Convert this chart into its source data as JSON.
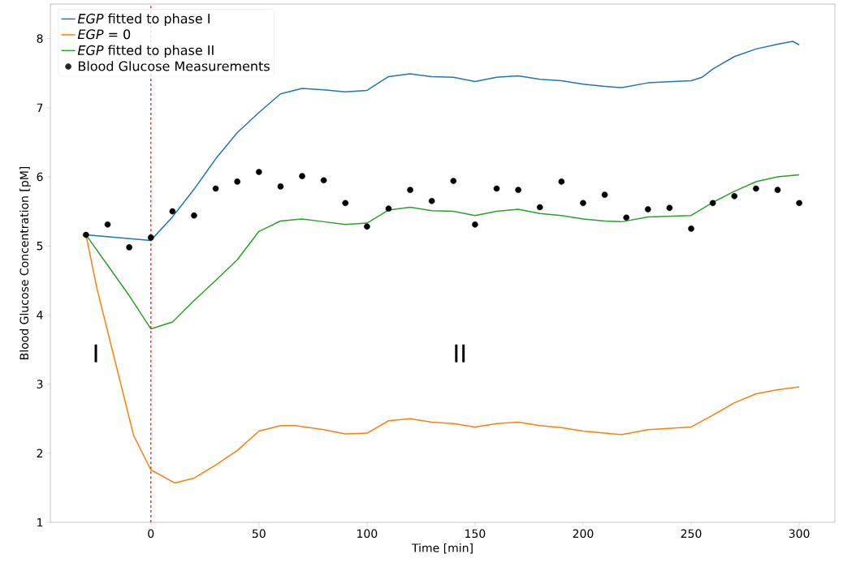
{
  "chart_data": {
    "type": "line",
    "xlabel": "Time [min]",
    "ylabel": "Blood Glucose Concentration [pM]",
    "xlim": [
      -46.5,
      316.5
    ],
    "ylim": [
      1,
      8.5
    ],
    "xticks": [
      0,
      50,
      100,
      150,
      200,
      250,
      300
    ],
    "yticks": [
      1,
      2,
      3,
      4,
      5,
      6,
      7,
      8
    ],
    "legend": "top left",
    "series": [
      {
        "name": "*EGP* fitted to phase I",
        "color": "#1f77b4",
        "marker": "none",
        "x": [
          -30,
          0,
          10,
          20,
          30,
          40,
          50,
          60,
          70,
          80,
          90,
          100,
          110,
          120,
          130,
          140,
          150,
          160,
          170,
          180,
          190,
          200,
          210,
          218,
          230,
          250,
          255,
          260,
          270,
          280,
          290,
          297,
          300
        ],
        "values": [
          5.16,
          5.08,
          5.42,
          5.82,
          6.26,
          6.64,
          6.93,
          7.2,
          7.28,
          7.26,
          7.23,
          7.25,
          7.45,
          7.49,
          7.45,
          7.44,
          7.38,
          7.44,
          7.46,
          7.41,
          7.39,
          7.34,
          7.31,
          7.29,
          7.36,
          7.39,
          7.44,
          7.56,
          7.74,
          7.85,
          7.92,
          7.96,
          7.91
        ]
      },
      {
        "name": "*EGP* = 0",
        "color": "#ff7f0e",
        "marker": "none",
        "x": [
          -30,
          -25,
          -8,
          0,
          11,
          20,
          30,
          40,
          50,
          60,
          67,
          80,
          90,
          100,
          110,
          120,
          130,
          140,
          150,
          160,
          170,
          180,
          190,
          200,
          210,
          218,
          230,
          250,
          260,
          270,
          280,
          290,
          300
        ],
        "values": [
          5.16,
          4.39,
          2.26,
          1.76,
          1.57,
          1.64,
          1.83,
          2.04,
          2.32,
          2.4,
          2.4,
          2.34,
          2.28,
          2.29,
          2.47,
          2.5,
          2.45,
          2.43,
          2.38,
          2.43,
          2.45,
          2.4,
          2.37,
          2.32,
          2.29,
          2.27,
          2.34,
          2.38,
          2.55,
          2.73,
          2.86,
          2.92,
          2.96
        ]
      },
      {
        "name": "*EGP* fitted to phase II",
        "color": "#2ca02c",
        "marker": "none",
        "x": [
          -30,
          -20,
          -10,
          0,
          10,
          20,
          30,
          40,
          50,
          60,
          70,
          80,
          90,
          100,
          110,
          120,
          130,
          140,
          150,
          160,
          170,
          180,
          190,
          200,
          210,
          218,
          230,
          250,
          260,
          270,
          280,
          290,
          300
        ],
        "values": [
          5.16,
          4.72,
          4.28,
          3.8,
          3.9,
          4.21,
          4.5,
          4.8,
          5.21,
          5.36,
          5.39,
          5.35,
          5.31,
          5.33,
          5.52,
          5.56,
          5.51,
          5.5,
          5.44,
          5.5,
          5.53,
          5.47,
          5.44,
          5.39,
          5.36,
          5.35,
          5.42,
          5.44,
          5.63,
          5.79,
          5.93,
          6.0,
          6.03
        ]
      },
      {
        "name": "Blood Glucose Measurements",
        "type": "scatter",
        "color": "#000000",
        "marker": "circle",
        "x": [
          -30,
          -20,
          -10,
          0,
          10,
          20,
          30,
          40,
          50,
          60,
          70,
          80,
          90,
          100,
          110,
          120,
          130,
          140,
          150,
          160,
          170,
          180,
          190,
          200,
          210,
          220,
          230,
          240,
          250,
          260,
          270,
          280,
          290,
          300
        ],
        "values": [
          5.16,
          5.31,
          4.98,
          5.12,
          5.5,
          5.44,
          5.83,
          5.93,
          6.07,
          5.86,
          6.01,
          5.95,
          5.62,
          5.28,
          5.54,
          5.81,
          5.65,
          5.94,
          5.31,
          5.83,
          5.81,
          5.56,
          5.93,
          5.62,
          5.74,
          5.41,
          5.53,
          5.55,
          5.25,
          5.62,
          5.72,
          5.83,
          5.81,
          5.62
        ]
      }
    ],
    "ref_lines": [
      {
        "axis": "x",
        "value": 0,
        "color": "#ff3030",
        "line_style": "dashed"
      }
    ],
    "annotations": [
      "I",
      "II"
    ]
  }
}
